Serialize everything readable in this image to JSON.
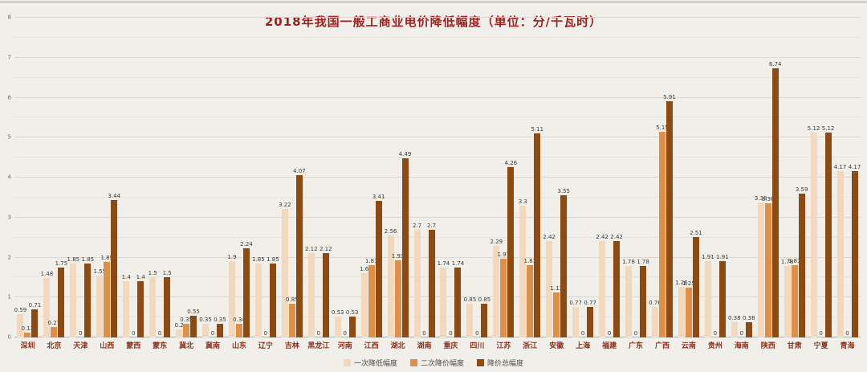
{
  "colors": {
    "series1": "#f2d8bd",
    "series2": "#de9049",
    "series3": "#8e4a11",
    "background": "#f1efe9",
    "title_text": "#9e1f1f",
    "x_label_text": "#8c3320",
    "axis_text": "#6b6b6b",
    "grid": "#dcd8cf"
  },
  "chart_data": {
    "type": "bar",
    "title": "2018年我国一般工商业电价降低幅度（单位：分/千瓦时）",
    "xlabel": "",
    "ylabel": "",
    "ylim": [
      0,
      8
    ],
    "ytick_step": 1,
    "minor_grid_step": 0.5,
    "grid": true,
    "legend_position": "bottom",
    "categories": [
      "深圳",
      "北京",
      "天津",
      "山西",
      "蒙西",
      "蒙东",
      "冀北",
      "冀南",
      "山东",
      "辽宁",
      "吉林",
      "黑龙江",
      "河南",
      "江西",
      "湖北",
      "湖南",
      "重庆",
      "四川",
      "江苏",
      "浙江",
      "安徽",
      "上海",
      "福建",
      "广东",
      "广西",
      "云南",
      "贵州",
      "海南",
      "陕西",
      "甘肃",
      "宁夏",
      "青海"
    ],
    "series": [
      {
        "name": "一次降低幅度",
        "values": [
          0.59,
          1.48,
          1.85,
          1.55,
          1.4,
          1.5,
          0.2,
          0.35,
          1.9,
          1.85,
          3.22,
          2.12,
          0.53,
          1.6,
          2.56,
          2.7,
          1.74,
          0.85,
          2.29,
          3.3,
          2.42,
          0.77,
          2.42,
          1.78,
          0.76,
          1.26,
          1.91,
          0.38,
          3.38,
          1.78,
          5.12,
          4.17
        ]
      },
      {
        "name": "二次降价幅度",
        "values": [
          0.12,
          0.27,
          0,
          1.89,
          0,
          0,
          0.35,
          0,
          0.34,
          0,
          0.85,
          0,
          0,
          1.81,
          1.93,
          0,
          0,
          0,
          1.97,
          1.81,
          1.13,
          0,
          0,
          0,
          5.15,
          1.25,
          0,
          0,
          3.36,
          1.81,
          0,
          0
        ]
      },
      {
        "name": "降价总幅度",
        "values": [
          0.71,
          1.75,
          1.85,
          3.44,
          1.4,
          1.5,
          0.55,
          0.35,
          2.24,
          1.85,
          4.07,
          2.12,
          0.53,
          3.41,
          4.49,
          2.7,
          1.74,
          0.85,
          4.26,
          5.11,
          3.55,
          0.77,
          2.42,
          1.78,
          5.91,
          2.51,
          1.91,
          0.38,
          6.74,
          3.59,
          5.12,
          4.17
        ]
      }
    ]
  }
}
